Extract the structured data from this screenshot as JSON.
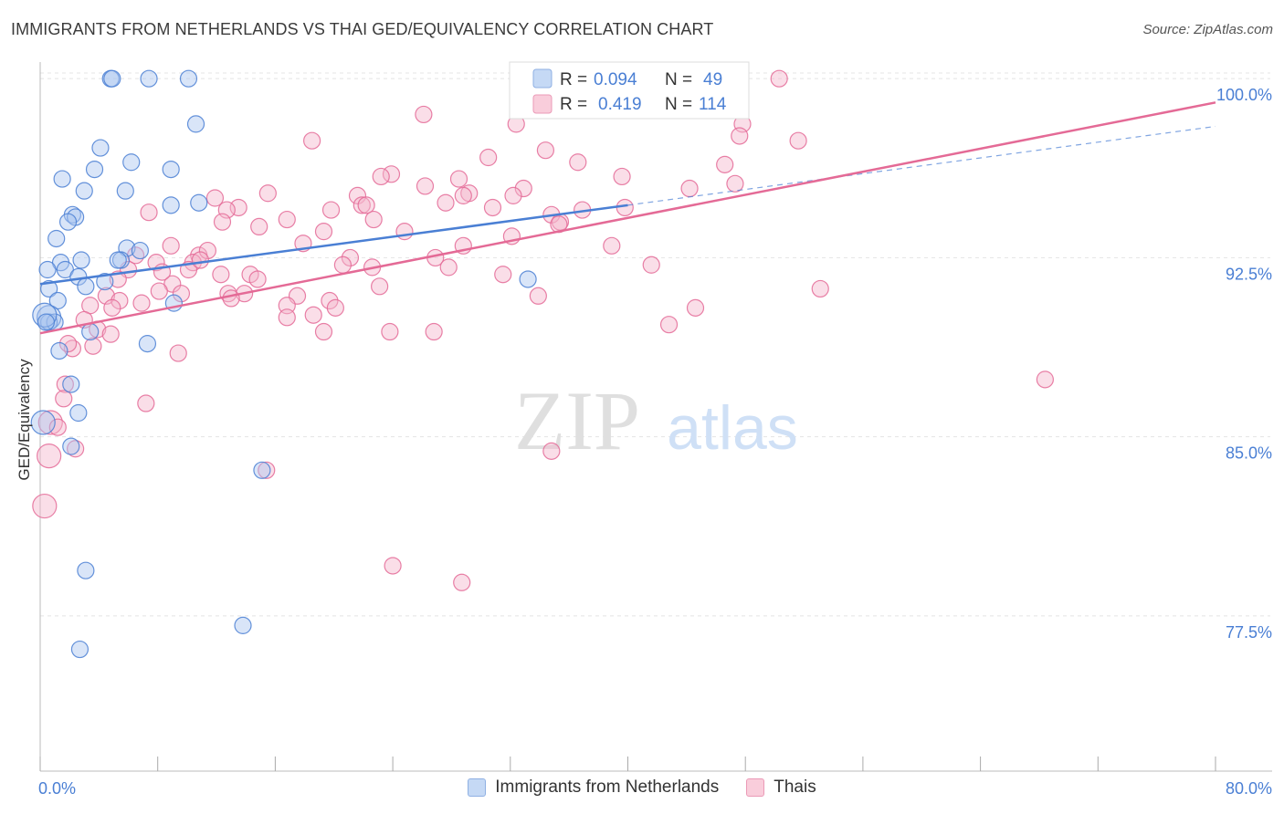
{
  "header": {
    "title": "IMMIGRANTS FROM NETHERLANDS VS THAI GED/EQUIVALENCY CORRELATION CHART",
    "source": "Source: ZipAtlas.com"
  },
  "watermark": {
    "zip": "ZIP",
    "atlas": "atlas"
  },
  "colors": {
    "blue": "#4a7fd4",
    "blue_fill": "#aac6ef",
    "pink": "#e46a96",
    "pink_fill": "#f5b6cb",
    "axis_label": "#4a7fd4"
  },
  "legend_box": {
    "series1": {
      "r_label": "R =",
      "r_value": "0.094",
      "n_label": "N =",
      "n_value": "49"
    },
    "series2": {
      "r_label": "R =",
      "r_value": "0.419",
      "n_label": "N =",
      "n_value": "114"
    }
  },
  "legend_bottom": [
    {
      "label": "Immigrants from Netherlands",
      "color": "blue"
    },
    {
      "label": "Thais",
      "color": "pink"
    }
  ],
  "chart_data": {
    "type": "scatter",
    "title": "IMMIGRANTS FROM NETHERLANDS VS THAI GED/EQUIVALENCY CORRELATION CHART",
    "xlabel": "",
    "ylabel": "GED/Equivalency",
    "xlim": [
      0,
      80
    ],
    "ylim": [
      71.0,
      101.0
    ],
    "x_tick_labels": [
      "0.0%",
      "80.0%"
    ],
    "y_ticks": [
      {
        "value": 77.5,
        "label": "77.5%"
      },
      {
        "value": 85.0,
        "label": "85.0%"
      },
      {
        "value": 92.5,
        "label": "92.5%"
      },
      {
        "value": 100.0,
        "label": "100.0%"
      }
    ],
    "series": [
      {
        "name": "Immigrants from Netherlands",
        "color": "blue",
        "trend": {
          "x": [
            0,
            40
          ],
          "y": [
            91.4,
            94.7
          ],
          "extended_to": [
            80,
            98.0
          ]
        },
        "points": [
          [
            4.8,
            100
          ],
          [
            4.9,
            100
          ],
          [
            7.4,
            100
          ],
          [
            10.1,
            100
          ],
          [
            5.8,
            95.3
          ],
          [
            10.6,
            98.1
          ],
          [
            4.1,
            97.1
          ],
          [
            6.2,
            96.5
          ],
          [
            3.7,
            96.2
          ],
          [
            8.9,
            96.2
          ],
          [
            1.5,
            95.8
          ],
          [
            3.0,
            95.3
          ],
          [
            8.9,
            94.7
          ],
          [
            10.8,
            94.8
          ],
          [
            2.2,
            94.3
          ],
          [
            2.4,
            94.2
          ],
          [
            1.9,
            94.0
          ],
          [
            1.1,
            93.3
          ],
          [
            5.9,
            92.9
          ],
          [
            6.8,
            92.8
          ],
          [
            1.4,
            92.3
          ],
          [
            2.8,
            92.4
          ],
          [
            5.5,
            92.4
          ],
          [
            5.3,
            92.4
          ],
          [
            0.5,
            92.0
          ],
          [
            1.7,
            92.0
          ],
          [
            2.6,
            91.7
          ],
          [
            4.4,
            91.5
          ],
          [
            3.1,
            91.3
          ],
          [
            0.6,
            91.2
          ],
          [
            1.2,
            90.7
          ],
          [
            9.1,
            90.6
          ],
          [
            0.6,
            90.0
          ],
          [
            0.6,
            89.8
          ],
          [
            1.0,
            89.8
          ],
          [
            3.4,
            89.4
          ],
          [
            7.3,
            88.9
          ],
          [
            1.3,
            88.6
          ],
          [
            2.1,
            87.2
          ],
          [
            2.6,
            86.0
          ],
          [
            0.2,
            85.6
          ],
          [
            2.1,
            84.6
          ],
          [
            15.1,
            83.6
          ],
          [
            3.1,
            79.4
          ],
          [
            13.8,
            77.1
          ],
          [
            2.7,
            76.1
          ],
          [
            33.2,
            91.6
          ],
          [
            0.3,
            90.1
          ],
          [
            0.4,
            89.8
          ]
        ]
      },
      {
        "name": "Thais",
        "color": "pink",
        "trend": {
          "x": [
            3,
            80
          ],
          "y": [
            89.7,
            99.0
          ]
        },
        "points": [
          [
            50.3,
            100
          ],
          [
            26.1,
            98.5
          ],
          [
            32.4,
            98.1
          ],
          [
            47.8,
            98.1
          ],
          [
            18.5,
            97.4
          ],
          [
            47.6,
            97.6
          ],
          [
            51.6,
            97.4
          ],
          [
            34.4,
            97.0
          ],
          [
            30.5,
            96.7
          ],
          [
            36.6,
            96.5
          ],
          [
            23.9,
            96.0
          ],
          [
            23.2,
            95.9
          ],
          [
            28.5,
            95.8
          ],
          [
            39.6,
            95.9
          ],
          [
            47.3,
            95.6
          ],
          [
            26.2,
            95.5
          ],
          [
            32.9,
            95.4
          ],
          [
            44.2,
            95.4
          ],
          [
            15.5,
            95.2
          ],
          [
            21.6,
            95.1
          ],
          [
            29.2,
            95.2
          ],
          [
            28.8,
            95.1
          ],
          [
            32.2,
            95.1
          ],
          [
            11.9,
            95.0
          ],
          [
            21.9,
            94.7
          ],
          [
            27.6,
            94.8
          ],
          [
            13.5,
            94.6
          ],
          [
            12.7,
            94.5
          ],
          [
            19.8,
            94.5
          ],
          [
            22.2,
            94.7
          ],
          [
            30.8,
            94.6
          ],
          [
            36.9,
            94.5
          ],
          [
            39.8,
            94.6
          ],
          [
            7.4,
            94.4
          ],
          [
            16.8,
            94.1
          ],
          [
            22.7,
            94.1
          ],
          [
            34.8,
            94.3
          ],
          [
            35.4,
            94.0
          ],
          [
            12.4,
            94.0
          ],
          [
            14.9,
            93.8
          ],
          [
            19.3,
            93.6
          ],
          [
            24.8,
            93.6
          ],
          [
            32.1,
            93.4
          ],
          [
            8.9,
            93.0
          ],
          [
            17.9,
            93.1
          ],
          [
            28.8,
            93.0
          ],
          [
            38.9,
            93.0
          ],
          [
            6.5,
            92.6
          ],
          [
            10.8,
            92.6
          ],
          [
            11.4,
            92.8
          ],
          [
            26.9,
            92.5
          ],
          [
            21.1,
            92.5
          ],
          [
            7.9,
            92.3
          ],
          [
            10.4,
            92.3
          ],
          [
            20.6,
            92.2
          ],
          [
            22.6,
            92.1
          ],
          [
            27.8,
            92.1
          ],
          [
            41.6,
            92.2
          ],
          [
            6.0,
            92.0
          ],
          [
            10.1,
            92.0
          ],
          [
            12.3,
            91.8
          ],
          [
            14.3,
            91.8
          ],
          [
            14.8,
            91.6
          ],
          [
            31.5,
            91.8
          ],
          [
            9.0,
            91.4
          ],
          [
            23.1,
            91.3
          ],
          [
            53.1,
            91.2
          ],
          [
            8.1,
            91.1
          ],
          [
            4.5,
            90.9
          ],
          [
            5.4,
            90.7
          ],
          [
            9.6,
            91.0
          ],
          [
            12.8,
            91.0
          ],
          [
            13.9,
            91.0
          ],
          [
            17.5,
            90.9
          ],
          [
            33.9,
            90.9
          ],
          [
            19.7,
            90.7
          ],
          [
            20.1,
            90.4
          ],
          [
            4.9,
            90.4
          ],
          [
            6.9,
            90.6
          ],
          [
            13.0,
            90.8
          ],
          [
            16.8,
            90.5
          ],
          [
            3.4,
            90.5
          ],
          [
            44.6,
            90.4
          ],
          [
            18.6,
            90.1
          ],
          [
            16.8,
            90.0
          ],
          [
            3.9,
            89.5
          ],
          [
            4.8,
            89.3
          ],
          [
            19.3,
            89.4
          ],
          [
            23.8,
            89.4
          ],
          [
            26.8,
            89.4
          ],
          [
            3.0,
            89.9
          ],
          [
            42.8,
            89.7
          ],
          [
            3.6,
            88.8
          ],
          [
            9.4,
            88.5
          ],
          [
            1.7,
            87.2
          ],
          [
            68.4,
            87.4
          ],
          [
            7.2,
            86.4
          ],
          [
            1.6,
            86.6
          ],
          [
            2.4,
            84.5
          ],
          [
            0.7,
            85.6
          ],
          [
            1.2,
            85.4
          ],
          [
            15.4,
            83.6
          ],
          [
            34.8,
            84.4
          ],
          [
            24.0,
            79.6
          ],
          [
            28.7,
            78.9
          ],
          [
            0.6,
            84.2
          ],
          [
            0.3,
            82.1
          ],
          [
            5.3,
            91.6
          ],
          [
            2.2,
            88.7
          ],
          [
            8.3,
            91.9
          ],
          [
            35.3,
            93.9
          ],
          [
            46.6,
            96.4
          ],
          [
            10.9,
            92.4
          ],
          [
            1.9,
            88.9
          ]
        ]
      }
    ]
  }
}
